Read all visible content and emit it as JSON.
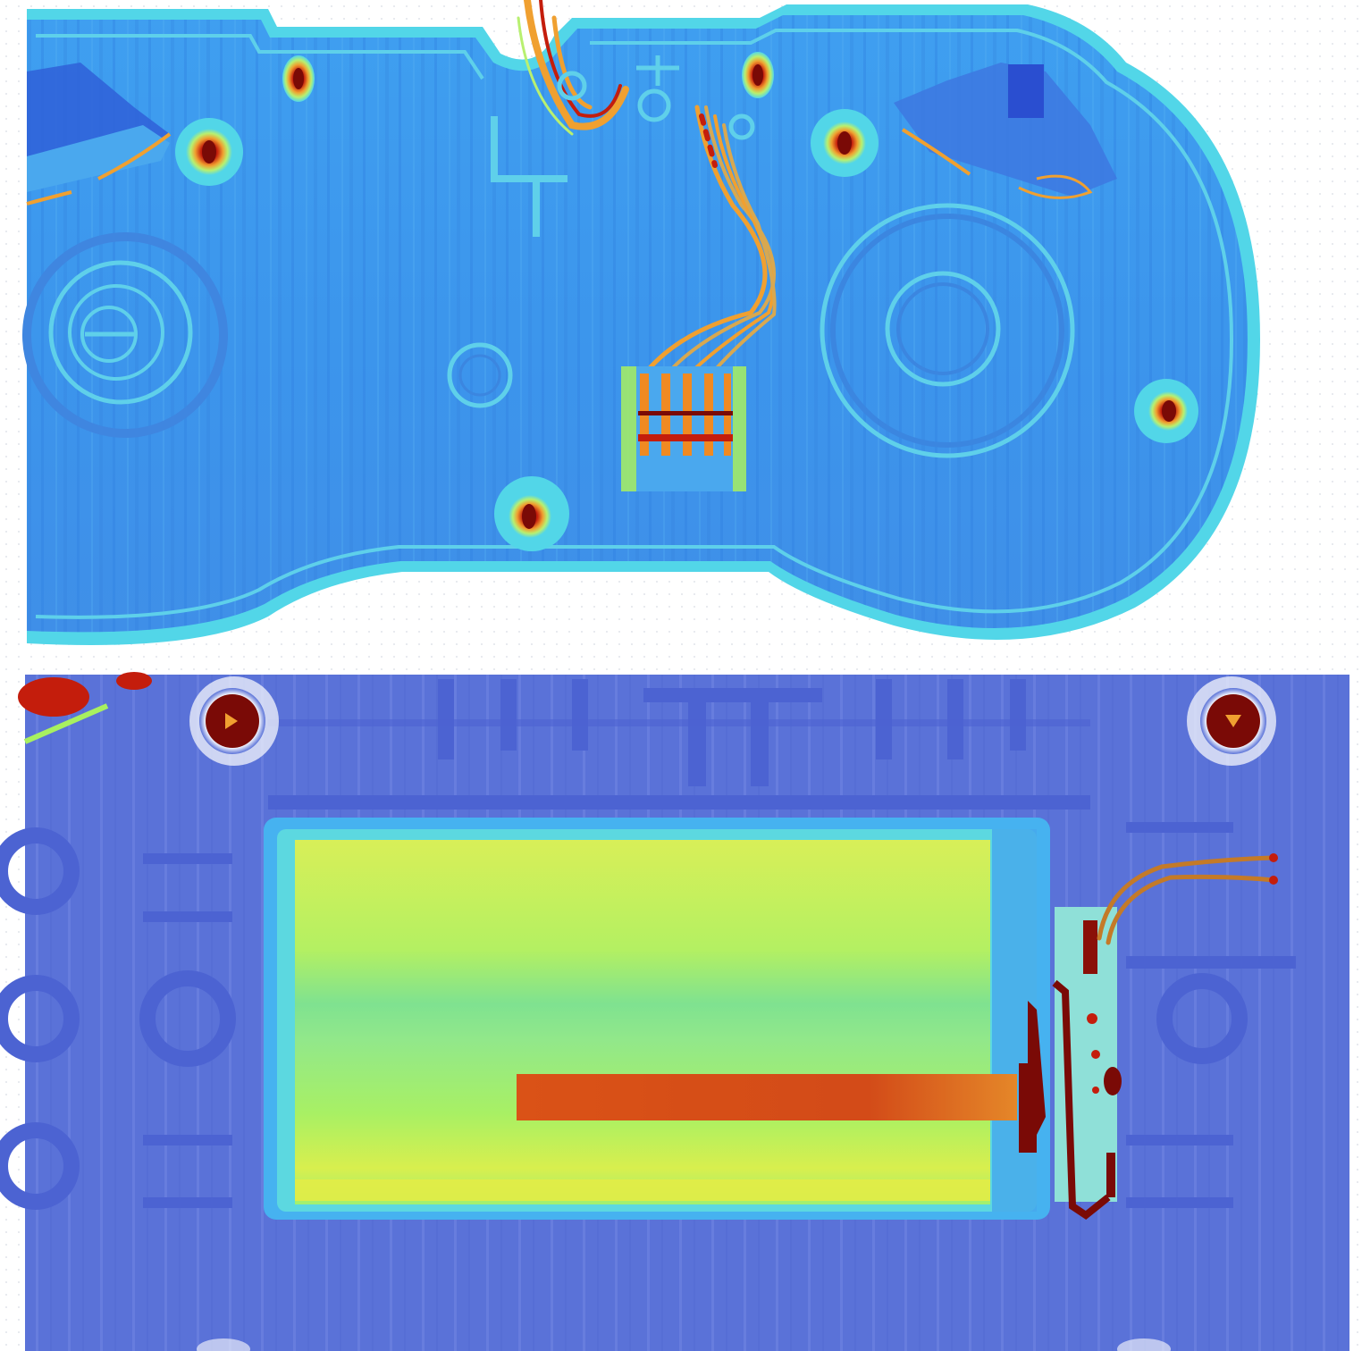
{
  "figure": {
    "panels": [
      {
        "id": "top",
        "subject": "controller-shell-interior",
        "colormap": "jet"
      },
      {
        "id": "bottom",
        "subject": "battery-compartment",
        "colormap": "jet"
      }
    ]
  },
  "palette": {
    "jet_dark_red": "#7a0a06",
    "jet_red": "#d42a10",
    "jet_orange": "#f08a22",
    "jet_yellow": "#e8f05a",
    "jet_green": "#a8f060",
    "jet_cyan": "#52d6e8",
    "jet_light_blue": "#3fa3f0",
    "jet_blue": "#3d7be0",
    "jet_deep_blue": "#5a72d8"
  }
}
